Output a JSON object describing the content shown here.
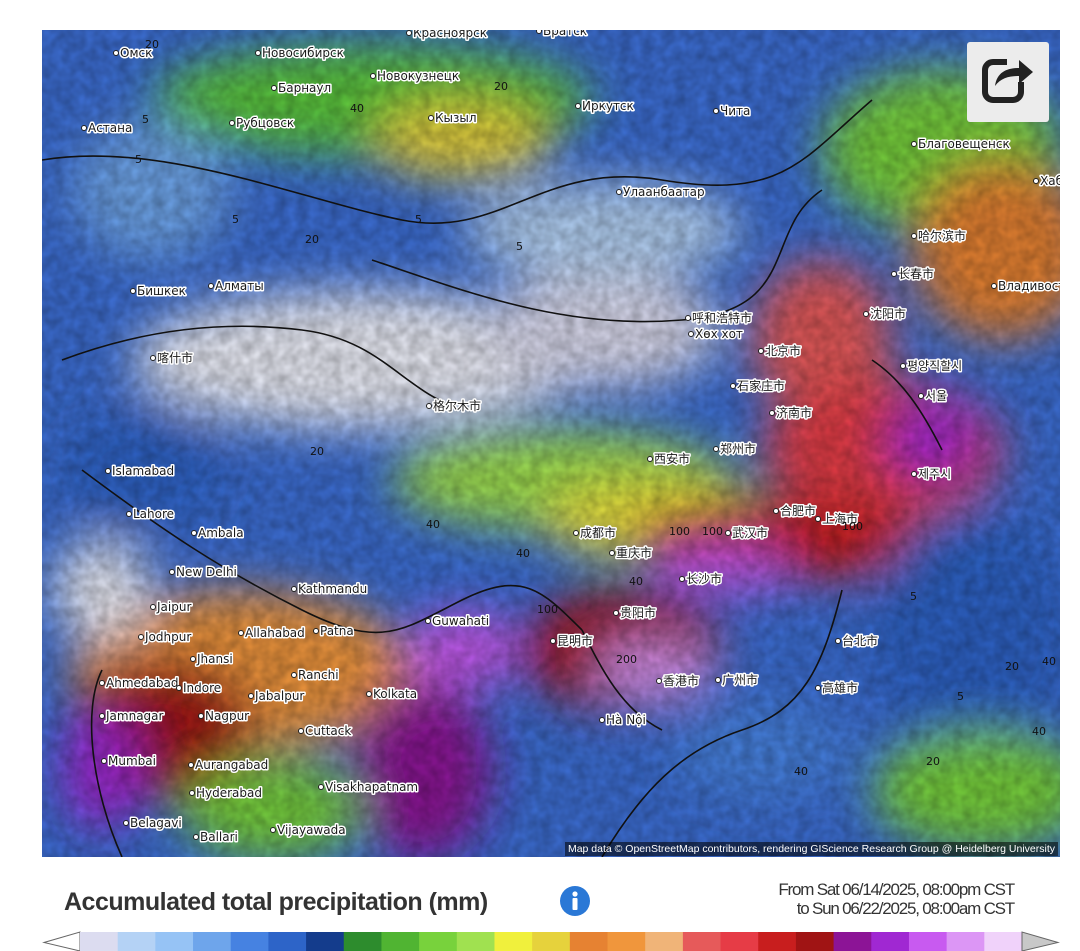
{
  "map": {
    "cities": [
      "Омск",
      "Новосибирск",
      "Красноярск",
      "Братск",
      "Барнаул",
      "Новокузнецк",
      "Иркутск",
      "Чита",
      "Кызыл",
      "Астана",
      "Рубцовск",
      "Благовещенск",
      "Хабаровск",
      "Улаанбаатар",
      "哈尔滨市",
      "长春市",
      "Владивосток",
      "Бишкек",
      "Алматы",
      "呼和浩特市",
      "Хөх хот",
      "沈阳市",
      "北京市",
      "평양직할시",
      "石家庄市",
      "서울",
      "喀什市",
      "济南市",
      "格尔木市",
      "西安市",
      "郑州市",
      "Islamabad",
      "제주시",
      "Lahore",
      "合肥市",
      "上海市",
      "Ambala",
      "成都市",
      "武汉市",
      "重庆市",
      "New Delhi",
      "长沙市",
      "Kathmandu",
      "Jaipur",
      "贵阳市",
      "Guwahati",
      "Jodhpur",
      "Allahabad",
      "Patna",
      "昆明市",
      "台北市",
      "Jhansi",
      "Ranchi",
      "香港市",
      "广州市",
      "Ahmedabad",
      "Indore",
      "Jabalpur",
      "Kolkata",
      "高雄市",
      "Jamnagar",
      "Nagpur",
      "Hà Nội",
      "Cuttack",
      "Mumbai",
      "Aurangabad",
      "Hyderabad",
      "Visakhapatnam",
      "Belagavi",
      "Vijayawada",
      "Ballari"
    ],
    "contour_labels": [
      "20",
      "5",
      "5",
      "40",
      "20",
      "20",
      "5",
      "5",
      "5",
      "20",
      "40",
      "40",
      "40",
      "100",
      "100",
      "100",
      "200",
      "100",
      "5",
      "20",
      "40",
      "20",
      "40",
      "40",
      "5"
    ],
    "attribution": "Map data © OpenStreetMap contributors, rendering GIScience Research Group @ Heidelberg University"
  },
  "legend": {
    "title": "Accumulated total precipitation (mm)",
    "date_from": "From Sat 06/14/2025, 08:00pm CST",
    "date_to": "to Sun 06/22/2025, 08:00am CST",
    "colors": [
      "#dcdcf0",
      "#b4d2f5",
      "#96c3f5",
      "#6ea5eb",
      "#4682e1",
      "#2d64c8",
      "#143c8c",
      "#2d8c2d",
      "#50b432",
      "#78d23c",
      "#a0e150",
      "#f0f03c",
      "#e6d23c",
      "#e68232",
      "#f0963c",
      "#f0b478",
      "#e65a5a",
      "#e63c46",
      "#c81e1e",
      "#a01414",
      "#8c1496",
      "#a028d2",
      "#c85af0",
      "#dc96f5",
      "#f0d2fa"
    ],
    "under_color": "#ffffff",
    "over_color": "#c8c8c8"
  }
}
